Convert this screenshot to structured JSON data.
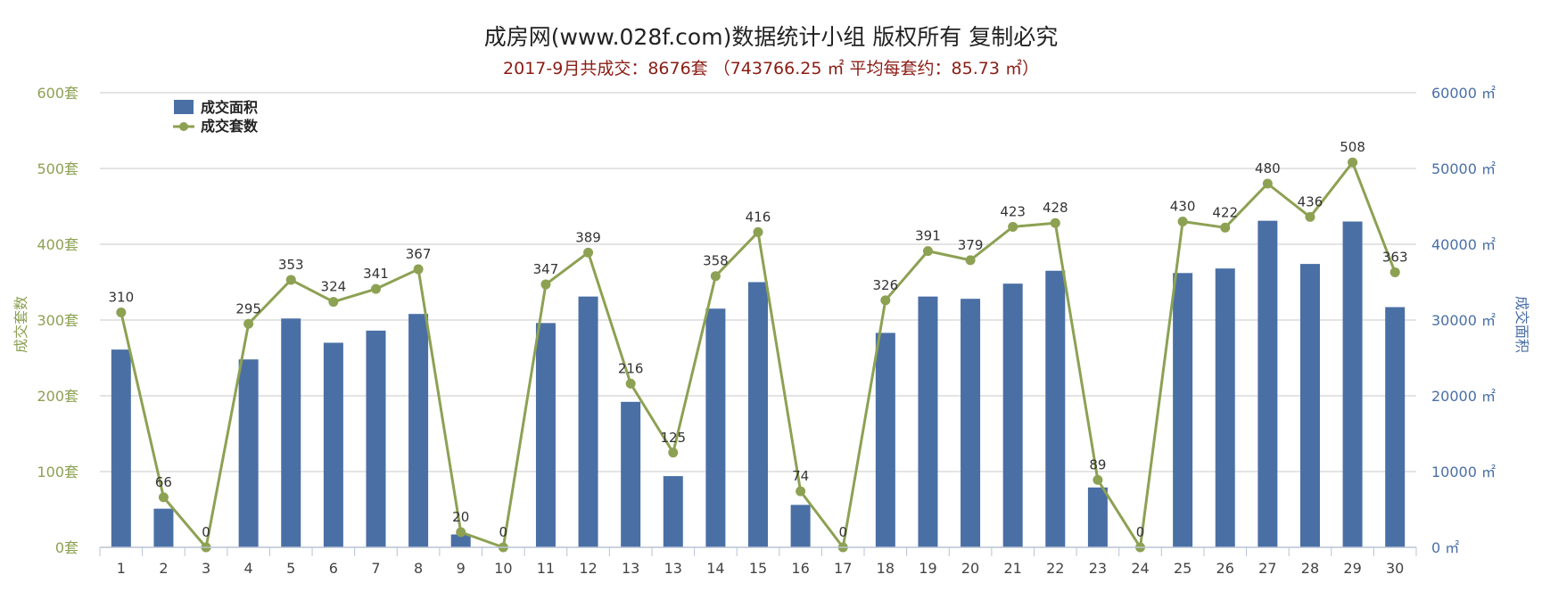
{
  "title": "成房网(www.028f.com)数据统计小组 版权所有 复制必究",
  "subtitle": "2017-9月共成交：8676套 （743766.25 ㎡ 平均每套约：85.73 ㎡）",
  "colors": {
    "bar": "#4a6fa5",
    "line": "#8da153",
    "left_axis_text": "#8da153",
    "right_axis_text": "#4a6fa5",
    "grid": "#c8c8c8",
    "label": "#333333"
  },
  "chart_data": {
    "type": "bar",
    "categories": [
      "1",
      "2",
      "3",
      "4",
      "5",
      "6",
      "7",
      "8",
      "9",
      "10",
      "11",
      "12",
      "13",
      "13",
      "14",
      "15",
      "16",
      "17",
      "18",
      "19",
      "20",
      "21",
      "22",
      "23",
      "24",
      "25",
      "26",
      "27",
      "28",
      "29",
      "30"
    ],
    "series": [
      {
        "name": "成交面积",
        "type": "bar",
        "axis": "right",
        "values": [
          26100,
          5100,
          0,
          24800,
          30200,
          27000,
          28600,
          30800,
          1700,
          0,
          29600,
          33100,
          19200,
          9400,
          31500,
          35000,
          5600,
          0,
          28300,
          33100,
          32800,
          34800,
          36500,
          7900,
          0,
          36200,
          36800,
          43100,
          37400,
          43000,
          31700
        ]
      },
      {
        "name": "成交套数",
        "type": "line",
        "axis": "left",
        "values": [
          310,
          66,
          0,
          295,
          353,
          324,
          341,
          367,
          20,
          0,
          347,
          389,
          216,
          125,
          358,
          416,
          74,
          0,
          326,
          391,
          379,
          423,
          428,
          89,
          0,
          430,
          422,
          480,
          436,
          508,
          363
        ]
      }
    ],
    "ylabel": "成交套数",
    "ylabel_right": "成交面积",
    "ylim": [
      0,
      600
    ],
    "ylim_right": [
      0,
      60000
    ],
    "yticks": [
      "0套",
      "100套",
      "200套",
      "300套",
      "400套",
      "500套",
      "600套"
    ],
    "yticks_right": [
      "0 ㎡",
      "10000 ㎡",
      "20000 ㎡",
      "30000 ㎡",
      "40000 ㎡",
      "50000 ㎡",
      "60000 ㎡"
    ],
    "legend": [
      "成交面积",
      "成交套数"
    ],
    "legend_position": "top-left",
    "grid": true
  }
}
